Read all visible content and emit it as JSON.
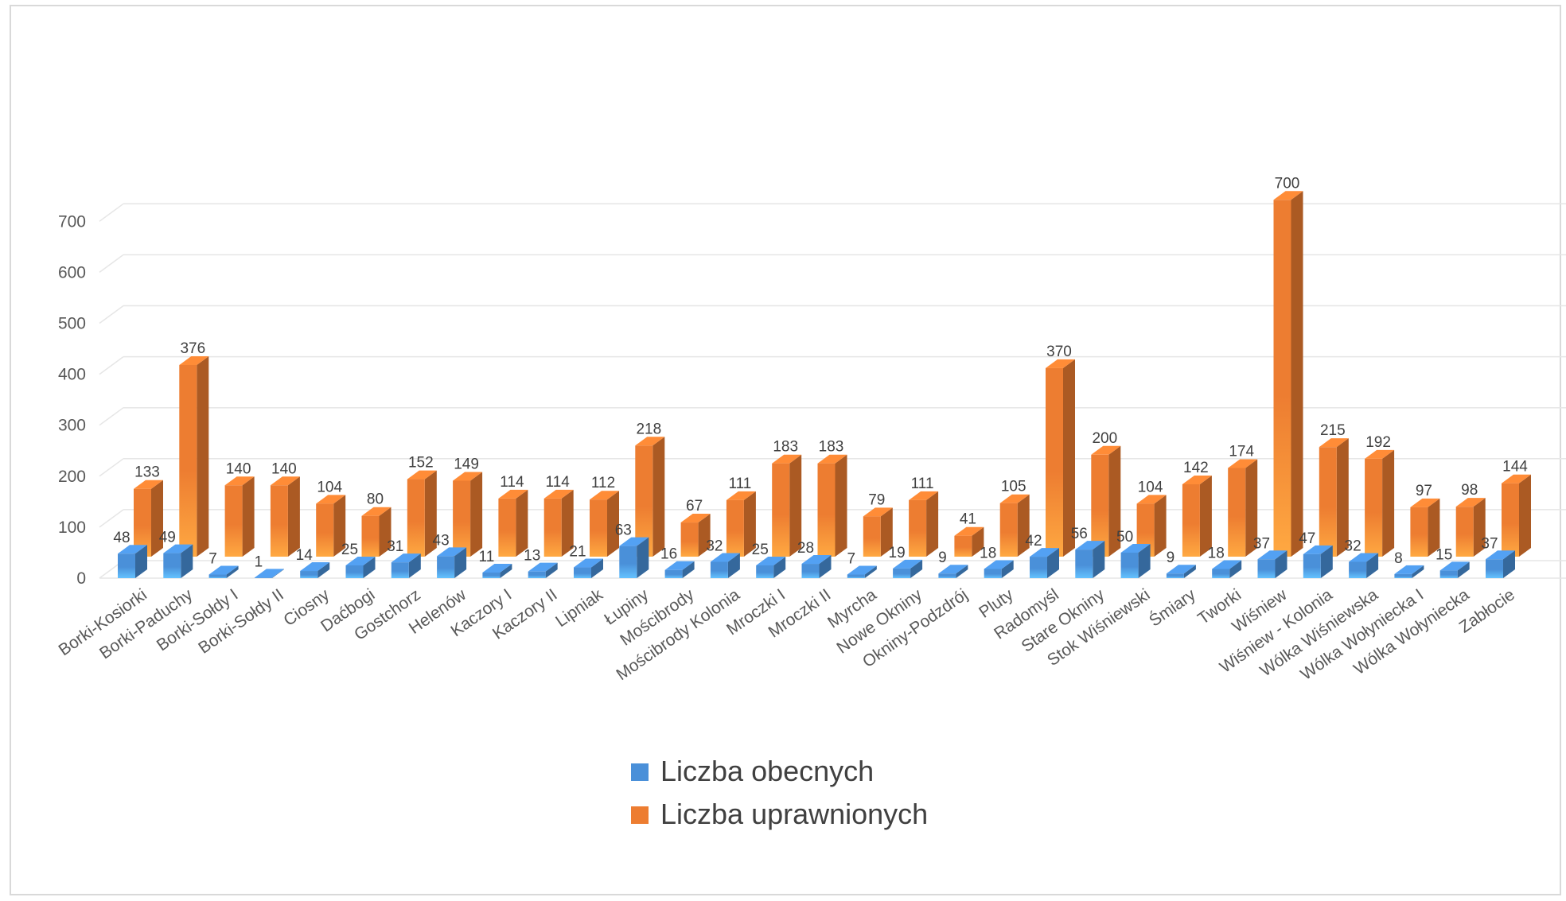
{
  "chart_data": {
    "type": "bar",
    "three_d": true,
    "categories": [
      "Borki-Kosiorki",
      "Borki-Paduchy",
      "Borki-Sołdy I",
      "Borki-Sołdy II",
      "Ciosny",
      "Daćbogi",
      "Gostchorz",
      "Helenów",
      "Kaczory I",
      "Kaczory II",
      "Lipniak",
      "Łupiny",
      "Mościbrody",
      "Mościbrody Kolonia",
      "Mroczki I",
      "Mroczki II",
      "Myrcha",
      "Nowe Okniny",
      "Okniny-Podzdrój",
      "Pluty",
      "Radomyśl",
      "Stare Okniny",
      "Stok Wiśniewski",
      "Śmiary",
      "Tworki",
      "Wiśniew",
      "Wiśniew - Kolonia",
      "Wólka Wiśniewska",
      "Wólka Wołyniecka I",
      "Wólka Wołyniecka",
      "Zabłocie"
    ],
    "series": [
      {
        "name": "Liczba obecnych",
        "color": "#4a90d9",
        "values": [
          48,
          49,
          7,
          1,
          14,
          25,
          31,
          43,
          11,
          13,
          21,
          63,
          16,
          32,
          25,
          28,
          7,
          19,
          9,
          18,
          42,
          56,
          50,
          9,
          18,
          37,
          47,
          32,
          8,
          15,
          37
        ]
      },
      {
        "name": "Liczba uprawnionych",
        "color": "#ed7d31",
        "values": [
          133,
          376,
          140,
          140,
          104,
          80,
          152,
          149,
          114,
          114,
          112,
          218,
          67,
          111,
          183,
          183,
          79,
          111,
          41,
          105,
          370,
          200,
          104,
          142,
          174,
          700,
          215,
          192,
          97,
          98,
          144
        ]
      }
    ],
    "yticks": [
      0,
      100,
      200,
      300,
      400,
      500,
      600,
      700
    ],
    "ylim": [
      0,
      720
    ],
    "grid": true,
    "legend_position": "bottom",
    "data_labels": true
  }
}
